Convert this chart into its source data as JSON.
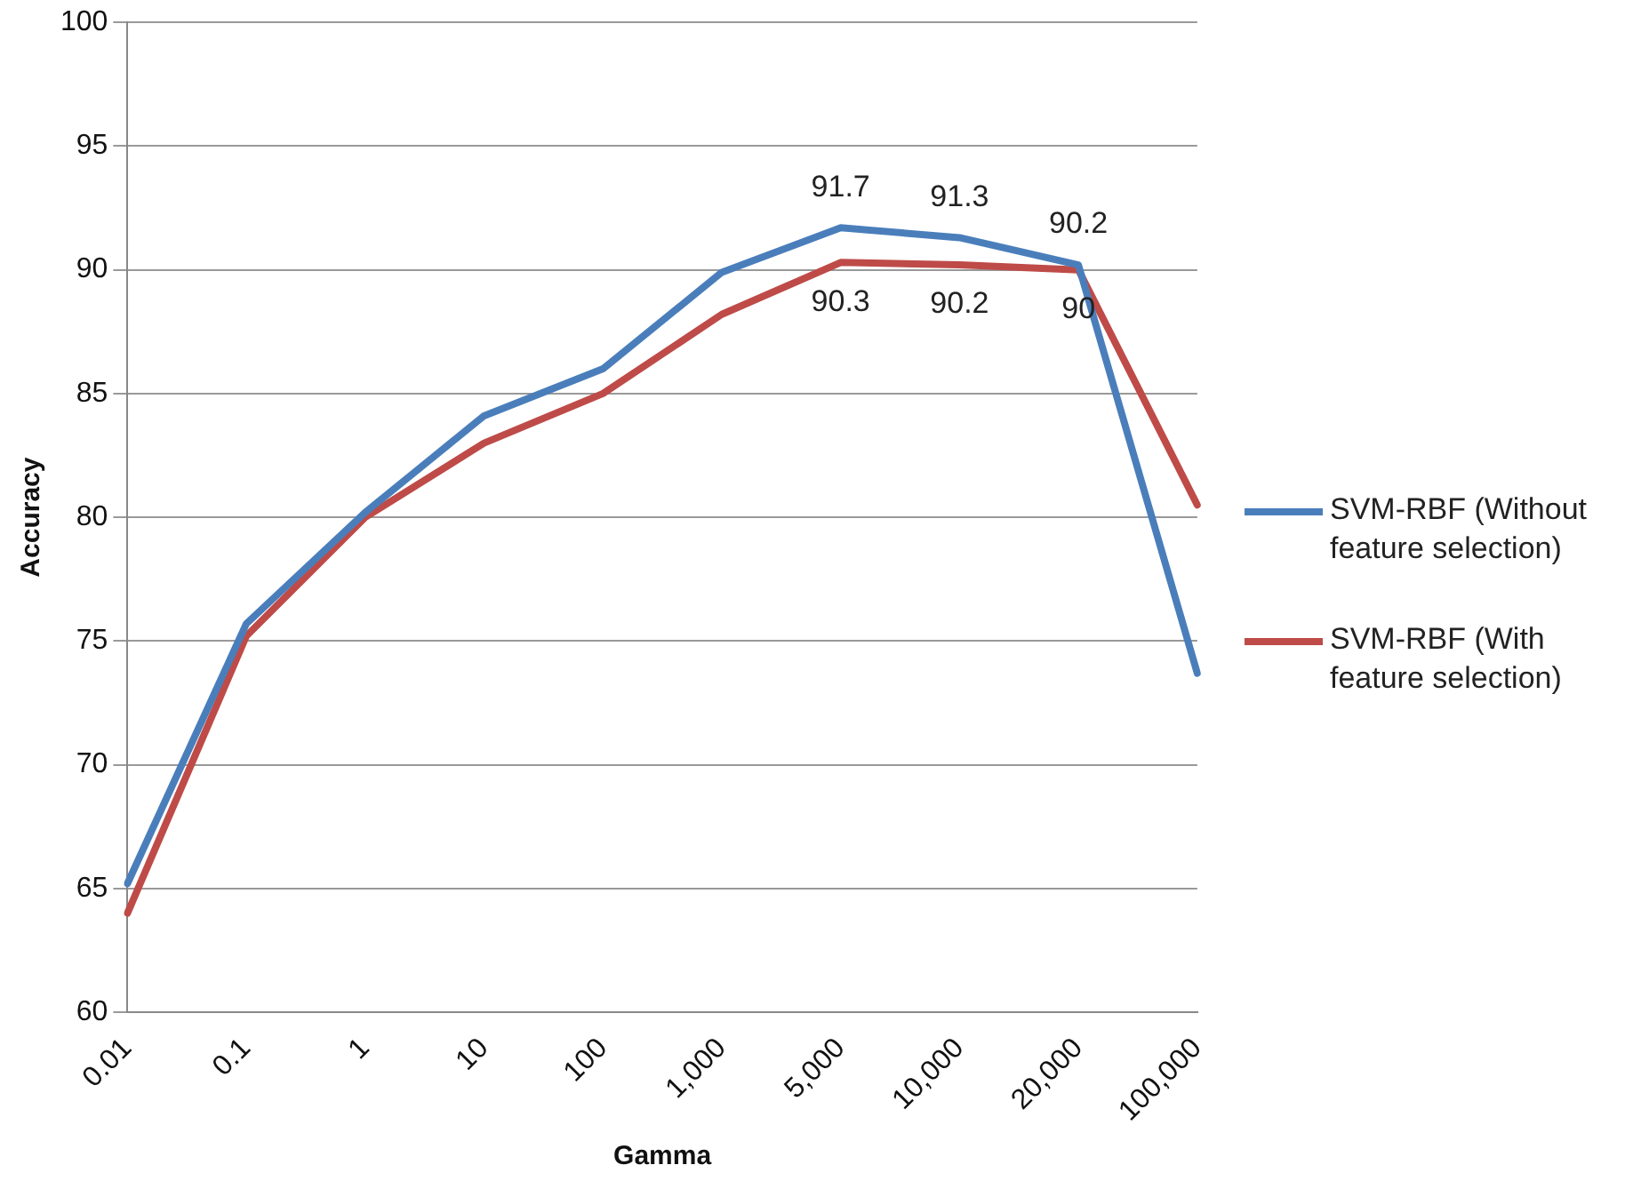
{
  "chart_data": {
    "type": "line",
    "xlabel": "Gamma",
    "ylabel": "Accuracy",
    "categories": [
      "0.01",
      "0.1",
      "1",
      "10",
      "100",
      "1,000",
      "5,000",
      "10,000",
      "20,000",
      "100,000"
    ],
    "series": [
      {
        "name": "SVM-RBF (Without feature selection)",
        "color": "#4a7ebb",
        "values": [
          65.2,
          75.7,
          80.2,
          84.1,
          86,
          89.9,
          91.7,
          91.3,
          90.2,
          73.7
        ],
        "value_labels": [
          null,
          null,
          null,
          null,
          null,
          null,
          "91.7",
          "91.3",
          "90.2",
          null
        ]
      },
      {
        "name": "SVM-RBF (With feature selection)",
        "color": "#be4b48",
        "values": [
          64,
          75.2,
          80,
          83,
          85,
          88.2,
          90.3,
          90.2,
          90,
          80.5
        ],
        "value_labels": [
          null,
          null,
          null,
          null,
          null,
          null,
          "90.3",
          "90.2",
          "90",
          null
        ]
      }
    ],
    "ylim": [
      60,
      100
    ],
    "yticks": [
      60,
      65,
      70,
      75,
      80,
      85,
      90,
      95,
      100
    ],
    "grid": "y",
    "legend": "right",
    "marker": "none",
    "line_style": "solid"
  }
}
